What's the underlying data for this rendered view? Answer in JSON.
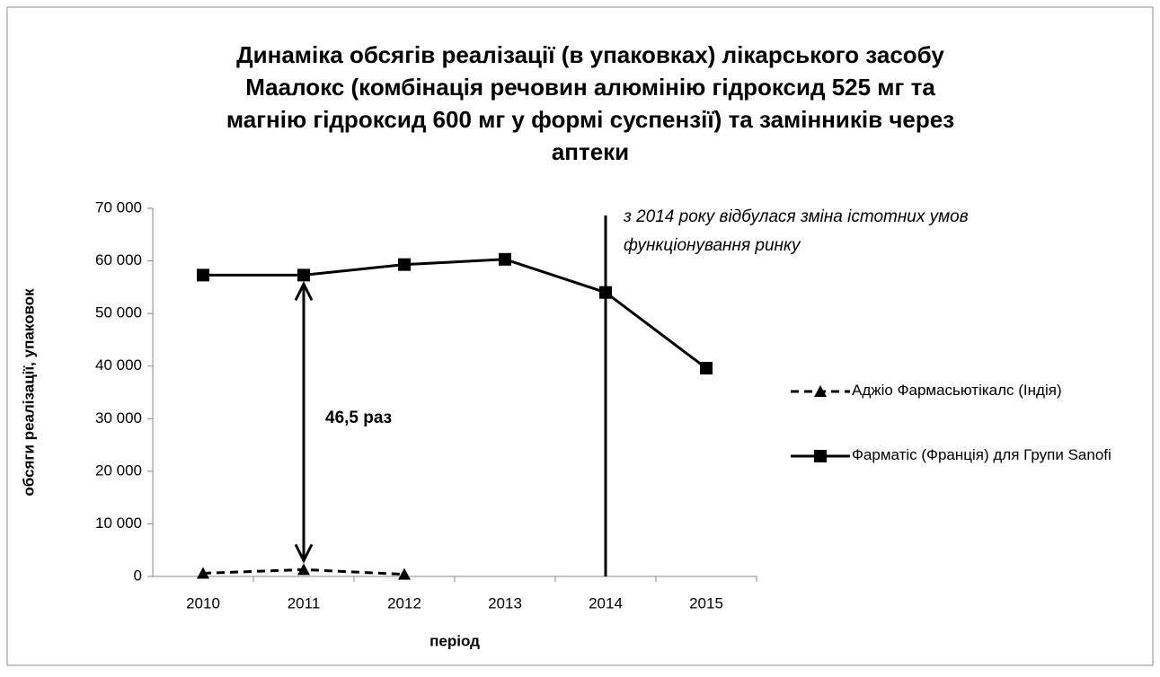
{
  "chart_data": {
    "type": "line",
    "title_lines": [
      "Динаміка обсягів реалізації (в упаковках) лікарського засобу",
      "Маалокс (комбінація речовин алюмінію гідроксид 525 мг та",
      "магнію гідроксид 600 мг у формі суспензії) та замінників через",
      "аптеки"
    ],
    "y_label": "обсяги реалізації, упаковок",
    "x_label": "період",
    "categories": [
      "2010",
      "2011",
      "2012",
      "2013",
      "2014",
      "2015"
    ],
    "series": [
      {
        "name": "Аджіо Фармасьютікалс  (Індія)",
        "color": "#000000",
        "dash": true,
        "marker": "triangle",
        "values": [
          600,
          1300,
          400,
          null,
          null,
          null
        ]
      },
      {
        "name": "Фарматіс  (Франція) для Групи Sanofi",
        "color": "#000000",
        "dash": false,
        "marker": "square",
        "values": [
          57300,
          57300,
          59300,
          60300,
          54000,
          39600
        ]
      }
    ],
    "ylim": [
      0,
      70000
    ],
    "yticks": [
      0,
      {
        "value": 10000,
        "label": "10 000"
      },
      {
        "value": 20000,
        "label": "20 000"
      },
      {
        "value": 30000,
        "label": "30 000"
      },
      {
        "value": 40000,
        "label": "40 000"
      },
      {
        "value": 50000,
        "label": "50 000"
      },
      {
        "value": 60000,
        "label": "60 000"
      },
      {
        "value": 70000,
        "label": "70 000"
      }
    ],
    "grid": false,
    "legend": "right",
    "annotation_lines": [
      "з 2014 року відбулася зміна істотних умов",
      "функціонування ринку"
    ],
    "ratio_label": "46,5 раз"
  }
}
